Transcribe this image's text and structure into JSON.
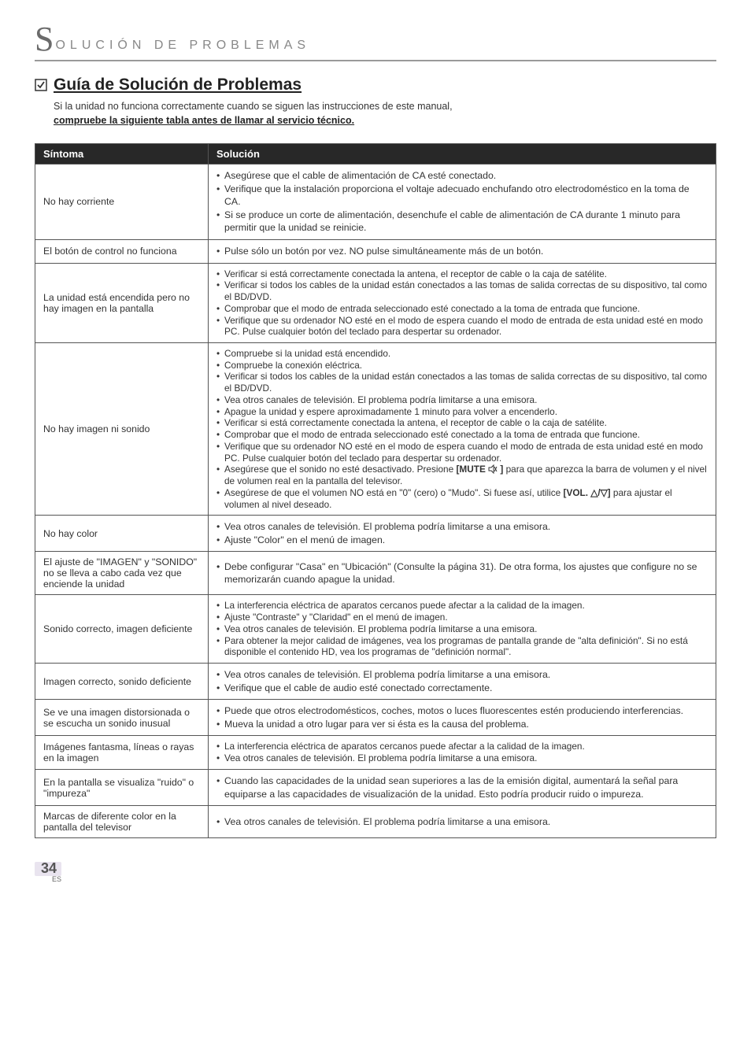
{
  "header": {
    "big_initial": "S",
    "rest": "OLUCIÓN  DE  PROBLEMAS"
  },
  "subheader": {
    "title": "Guía de Solución de Problemas",
    "intro_line": "Si la unidad no funciona correctamente cuando se siguen las instrucciones de este manual,",
    "intro_bold": "compruebe la siguiente tabla antes de llamar al servicio técnico."
  },
  "table": {
    "col_symptom": "Síntoma",
    "col_solution": "Solución",
    "rows": [
      {
        "symptom": "No hay corriente",
        "solutions": [
          "Asegúrese que el cable de alimentación de CA esté conectado.",
          "Verifique que la instalación proporciona el voltaje adecuado enchufando otro electrodoméstico en la toma de CA.",
          "Si se produce un corte de alimentación, desenchufe el cable de alimentación de CA durante 1 minuto para permitir que la unidad se reinicie."
        ],
        "tight": false
      },
      {
        "symptom": "El botón de control no funciona",
        "solutions": [
          "Pulse sólo un botón por vez. NO pulse simultáneamente más de un botón."
        ],
        "tight": false
      },
      {
        "symptom": "La unidad está encendida pero no hay imagen en la pantalla",
        "solutions": [
          "Verificar si está correctamente conectada la antena, el receptor de cable o la caja de satélite.",
          "Verificar si todos los cables de la unidad están conectados a las tomas de salida correctas de su dispositivo, tal como el BD/DVD.",
          "Comprobar que el modo de entrada seleccionado esté conectado a la toma de entrada que funcione.",
          "Verifique que su ordenador NO esté en el modo de espera cuando el modo de entrada de esta unidad esté en modo PC. Pulse cualquier botón del teclado para despertar su ordenador."
        ],
        "tight": true
      },
      {
        "symptom": "No hay imagen ni sonido",
        "solutions": [
          "Compruebe si la unidad está encendido.",
          "Compruebe la conexión eléctrica.",
          "Verificar si todos los cables de la unidad están conectados a las tomas de salida correctas de su dispositivo, tal como el BD/DVD.",
          "Vea otros canales de televisión. El problema podría limitarse a una emisora.",
          "Apague la unidad y espere aproximadamente 1 minuto para volver a encenderlo.",
          "Verificar si está correctamente conectada la antena, el receptor de cable o la caja de satélite.",
          "Comprobar que el modo de entrada seleccionado esté conectado a la toma de entrada que funcione.",
          "Verifique que su ordenador NO esté en el modo de espera cuando el modo de entrada de esta unidad esté en modo PC. Pulse cualquier botón del teclado para despertar su ordenador.",
          "Asegúrese que el sonido no esté desactivado. Presione [MUTE ⊘] para que aparezca la barra de volumen y el nivel de volumen real en la pantalla del televisor.",
          "Asegúrese de que el volumen NO está en \"0\" (cero) o \"Mudo\". Si fuese así, utilice [VOL. △/▽] para ajustar el volumen al nivel deseado."
        ],
        "tight": true
      },
      {
        "symptom": "No hay color",
        "solutions": [
          "Vea otros canales de televisión. El problema podría limitarse a una emisora.",
          "Ajuste \"Color\" en el menú de imagen."
        ],
        "tight": false
      },
      {
        "symptom": "El ajuste de \"IMAGEN\" y \"SONIDO\" no se lleva a cabo cada vez que enciende la unidad",
        "solutions": [
          "Debe configurar \"Casa\" en \"Ubicación\" (Consulte la página 31). De otra forma, los ajustes que configure no se memorizarán cuando apague la unidad."
        ],
        "tight": false
      },
      {
        "symptom": "Sonido correcto, imagen deficiente",
        "solutions": [
          "La interferencia eléctrica de aparatos cercanos puede afectar a la calidad de la imagen.",
          "Ajuste \"Contraste\" y \"Claridad\" en el menú de imagen.",
          "Vea otros canales de televisión. El problema podría limitarse a una emisora.",
          "Para obtener la mejor calidad de imágenes, vea los programas de pantalla grande de \"alta definición\". Si no está disponible el contenido HD, vea los programas de \"definición normal\"."
        ],
        "tight": true
      },
      {
        "symptom": "Imagen correcto, sonido deficiente",
        "solutions": [
          "Vea otros canales de televisión. El problema podría limitarse a una emisora.",
          "Verifique que el cable de audio esté conectado correctamente."
        ],
        "tight": false
      },
      {
        "symptom": "Se ve una imagen distorsionada o se escucha un sonido inusual",
        "solutions": [
          "Puede que otros electrodomésticos, coches, motos o luces fluorescentes estén produciendo interferencias.",
          "Mueva la unidad a otro lugar para ver si ésta es la causa del problema."
        ],
        "tight": false
      },
      {
        "symptom": "Imágenes fantasma, líneas o rayas en la imagen",
        "solutions": [
          "La interferencia eléctrica de aparatos cercanos puede afectar a la calidad de la imagen.",
          "Vea otros canales de televisión. El problema podría limitarse a una emisora."
        ],
        "tight": true
      },
      {
        "symptom": "En la pantalla se visualiza \"ruido\" o \"impureza\"",
        "solutions": [
          "Cuando las capacidades de la unidad sean superiores a las de la emisión digital, aumentará la señal para equiparse a las capacidades de visualización de la unidad. Esto podría producir ruido o impureza."
        ],
        "tight": false
      },
      {
        "symptom": "Marcas de diferente color en la pantalla del televisor",
        "solutions": [
          "Vea otros canales de televisión. El problema podría limitarse a una emisora."
        ],
        "tight": false
      }
    ]
  },
  "footer": {
    "page_number": "34",
    "lang": "ES"
  }
}
